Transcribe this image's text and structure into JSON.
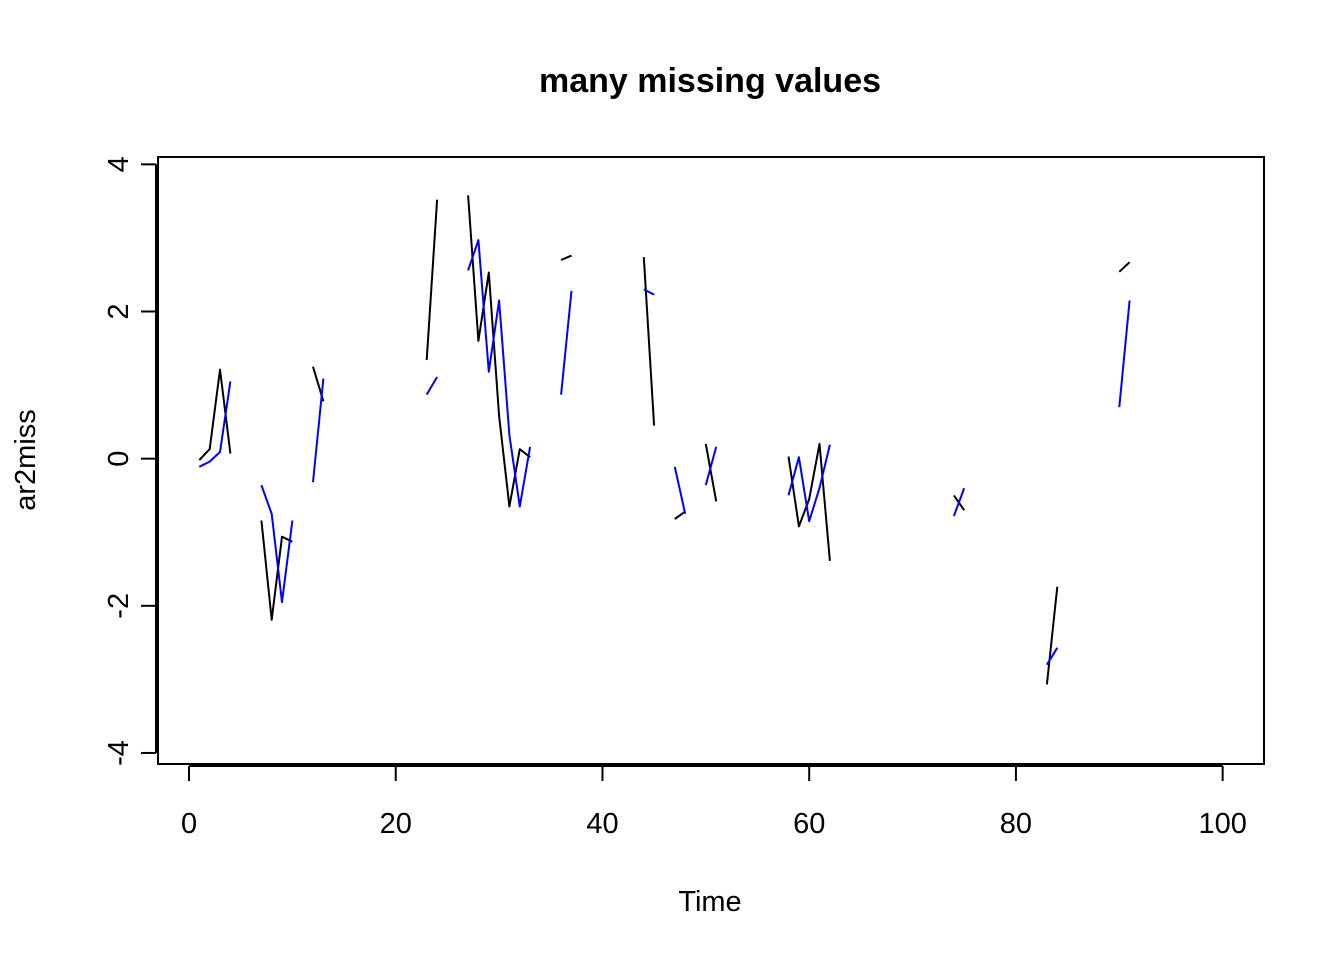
{
  "chart_data": {
    "type": "line",
    "title": "many missing values",
    "xlabel": "Time",
    "ylabel": "ar2miss",
    "xlim": [
      -3,
      104
    ],
    "ylim": [
      -4.15,
      4.1
    ],
    "x_ticks": [
      0,
      20,
      40,
      60,
      80,
      100
    ],
    "x_tick_labels": [
      "0",
      "20",
      "40",
      "60",
      "80",
      "100"
    ],
    "y_ticks": [
      -4,
      -2,
      0,
      2,
      4
    ],
    "y_tick_labels": [
      "-4",
      "-2",
      "0",
      "2",
      "4"
    ],
    "grid": false,
    "legend": "none",
    "series": [
      {
        "color": "#000000",
        "points": [
          [
            1,
            -0.02
          ],
          [
            2,
            0.13
          ],
          [
            3,
            1.21
          ],
          [
            4,
            0.07
          ],
          [
            5,
            null
          ],
          [
            6,
            null
          ],
          [
            7,
            -0.84
          ],
          [
            8,
            -2.19
          ],
          [
            9,
            -1.06
          ],
          [
            10,
            -1.13
          ],
          [
            11,
            null
          ],
          [
            12,
            1.25
          ],
          [
            13,
            0.78
          ],
          [
            14,
            null
          ],
          [
            22,
            null
          ],
          [
            23,
            1.34
          ],
          [
            24,
            3.52
          ],
          [
            25,
            null
          ],
          [
            26,
            null
          ],
          [
            27,
            3.58
          ],
          [
            28,
            1.6
          ],
          [
            29,
            2.53
          ],
          [
            30,
            0.58
          ],
          [
            31,
            -0.65
          ],
          [
            32,
            0.13
          ],
          [
            33,
            0.02
          ],
          [
            34,
            null
          ],
          [
            35,
            null
          ],
          [
            36,
            2.7
          ],
          [
            37,
            2.76
          ],
          [
            38,
            null
          ],
          [
            43,
            null
          ],
          [
            44,
            2.74
          ],
          [
            45,
            0.45
          ],
          [
            46,
            null
          ],
          [
            47,
            -0.82
          ],
          [
            48,
            -0.72
          ],
          [
            49,
            null
          ],
          [
            50,
            0.2
          ],
          [
            51,
            -0.58
          ],
          [
            52,
            null
          ],
          [
            57,
            null
          ],
          [
            58,
            0.03
          ],
          [
            59,
            -0.92
          ],
          [
            60,
            -0.55
          ],
          [
            61,
            0.2
          ],
          [
            62,
            -1.39
          ],
          [
            63,
            null
          ],
          [
            73,
            null
          ],
          [
            74,
            -0.5
          ],
          [
            75,
            -0.7
          ],
          [
            76,
            null
          ],
          [
            82,
            null
          ],
          [
            83,
            -3.07
          ],
          [
            84,
            -1.74
          ],
          [
            85,
            null
          ],
          [
            89,
            null
          ],
          [
            90,
            2.54
          ],
          [
            91,
            2.67
          ]
        ]
      },
      {
        "color": "#0000ff",
        "points": [
          [
            1,
            -0.11
          ],
          [
            2,
            -0.04
          ],
          [
            3,
            0.09
          ],
          [
            4,
            1.05
          ],
          [
            5,
            null
          ],
          [
            6,
            null
          ],
          [
            7,
            -0.36
          ],
          [
            8,
            -0.75
          ],
          [
            9,
            -1.95
          ],
          [
            10,
            -0.84
          ],
          [
            11,
            null
          ],
          [
            12,
            -0.32
          ],
          [
            13,
            1.09
          ],
          [
            14,
            null
          ],
          [
            22,
            null
          ],
          [
            23,
            0.87
          ],
          [
            24,
            1.11
          ],
          [
            25,
            null
          ],
          [
            26,
            null
          ],
          [
            27,
            2.56
          ],
          [
            28,
            2.97
          ],
          [
            29,
            1.18
          ],
          [
            30,
            2.15
          ],
          [
            31,
            0.32
          ],
          [
            32,
            -0.65
          ],
          [
            33,
            0.16
          ],
          [
            34,
            null
          ],
          [
            35,
            null
          ],
          [
            36,
            0.87
          ],
          [
            37,
            2.28
          ],
          [
            38,
            null
          ],
          [
            43,
            null
          ],
          [
            44,
            2.3
          ],
          [
            45,
            2.23
          ],
          [
            46,
            null
          ],
          [
            47,
            -0.11
          ],
          [
            48,
            -0.75
          ],
          [
            49,
            null
          ],
          [
            50,
            -0.36
          ],
          [
            51,
            0.16
          ],
          [
            52,
            null
          ],
          [
            57,
            null
          ],
          [
            58,
            -0.5
          ],
          [
            59,
            0.02
          ],
          [
            60,
            -0.85
          ],
          [
            61,
            -0.4
          ],
          [
            62,
            0.19
          ],
          [
            63,
            null
          ],
          [
            73,
            null
          ],
          [
            74,
            -0.78
          ],
          [
            75,
            -0.4
          ],
          [
            76,
            null
          ],
          [
            82,
            null
          ],
          [
            83,
            -2.8
          ],
          [
            84,
            -2.57
          ],
          [
            85,
            null
          ],
          [
            89,
            null
          ],
          [
            90,
            0.7
          ],
          [
            91,
            2.15
          ]
        ]
      }
    ]
  }
}
